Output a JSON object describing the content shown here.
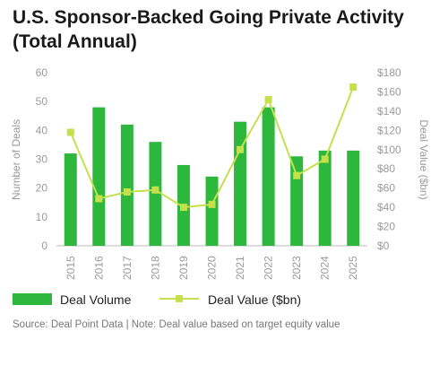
{
  "chart_data": {
    "type": "bar+line",
    "title_line1": "U.S. Sponsor-Backed Going Private Activity",
    "title_line2": "(Total Annual)",
    "categories": [
      "2015",
      "2016",
      "2017",
      "2018",
      "2019",
      "2020",
      "2021",
      "2022",
      "2023",
      "2024",
      "2025"
    ],
    "series": [
      {
        "name": "Deal Volume",
        "type": "bar",
        "axis": "left",
        "values": [
          32,
          48,
          42,
          36,
          28,
          24,
          43,
          48,
          31,
          33,
          33
        ]
      },
      {
        "name": "Deal Value ($bn)",
        "type": "line",
        "axis": "right",
        "values": [
          118,
          49,
          56,
          58,
          40,
          43,
          100,
          152,
          73,
          90,
          165
        ]
      }
    ],
    "ylabel_left": "Number of Deals",
    "ylabel_right": "Deal Value ($bn)",
    "ylim_left": [
      0,
      60
    ],
    "ylim_right": [
      0,
      180
    ],
    "yticks_left": [
      "0",
      "10",
      "20",
      "30",
      "40",
      "50",
      "60"
    ],
    "yticks_right": [
      "$0",
      "$20",
      "$40",
      "$60",
      "$80",
      "$100",
      "$120",
      "$140",
      "$160",
      "$180"
    ],
    "grid": false,
    "legend_position": "bottom",
    "colors": {
      "bar": "#2db83d",
      "line": "#c4e04c"
    },
    "source": "Source: Deal Point Data  |  Note: Deal value based on target equity value"
  }
}
